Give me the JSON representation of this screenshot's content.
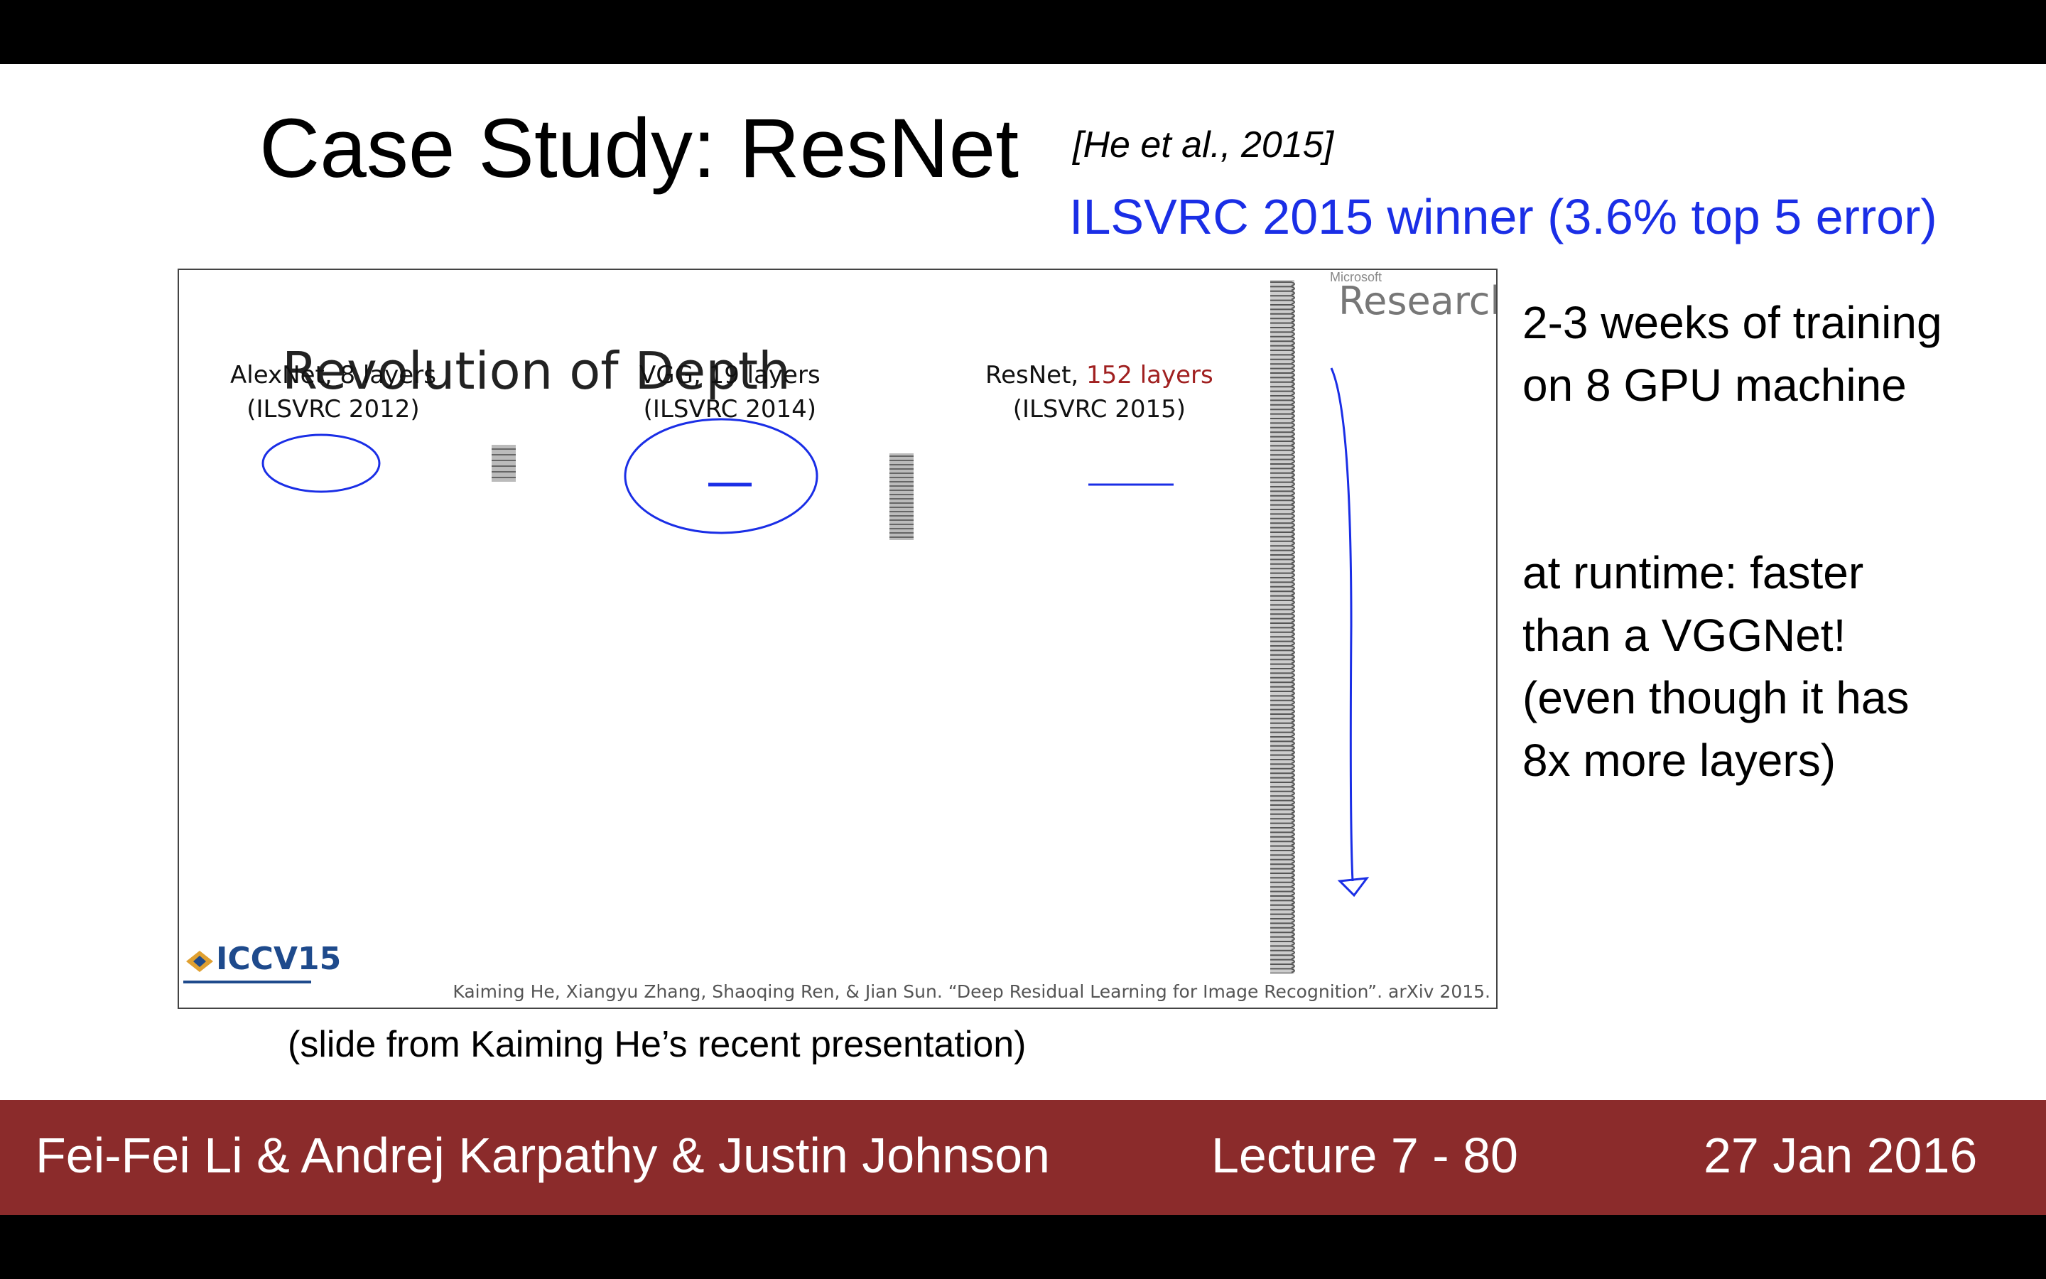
{
  "slide": {
    "title": "Case Study: ResNet",
    "citation": "[He et al., 2015]",
    "winner_text": "ILSVRC 2015 winner (3.6% top 5 error)",
    "embedded": {
      "heading": "Revolution of Depth",
      "ms_small": "Microsoft",
      "ms_research": "Research",
      "models": [
        {
          "name": "AlexNet, ",
          "layers": "8 layers",
          "year": "(ILSVRC 2012)"
        },
        {
          "name": "VGG, ",
          "layers": "19 layers",
          "year": "(ILSVRC 2014)"
        },
        {
          "name": "ResNet, ",
          "layers": "152 layers",
          "year": "(ILSVRC 2015)"
        }
      ],
      "logo_text": "ICCV15",
      "reference": "Kaiming He, Xiangyu Zhang, Shaoqing Ren, & Jian Sun. “Deep Residual Learning for Image Recognition”. arXiv 2015."
    },
    "side_notes": {
      "line1": "2-3 weeks of training",
      "line2": "on 8 GPU machine",
      "line3": "at runtime: faster",
      "line4": "than a VGGNet!",
      "line5": "(even though it has",
      "line6": "8x more layers)"
    },
    "caption": "(slide from Kaiming He’s recent presentation)",
    "accent_color": "#1a2ee6",
    "footer_color": "#8b2b2b"
  },
  "footer": {
    "authors": "Fei-Fei Li & Andrej Karpathy & Justin Johnson",
    "lecture": "Lecture 7 - 80",
    "date": "27 Jan 2016"
  }
}
